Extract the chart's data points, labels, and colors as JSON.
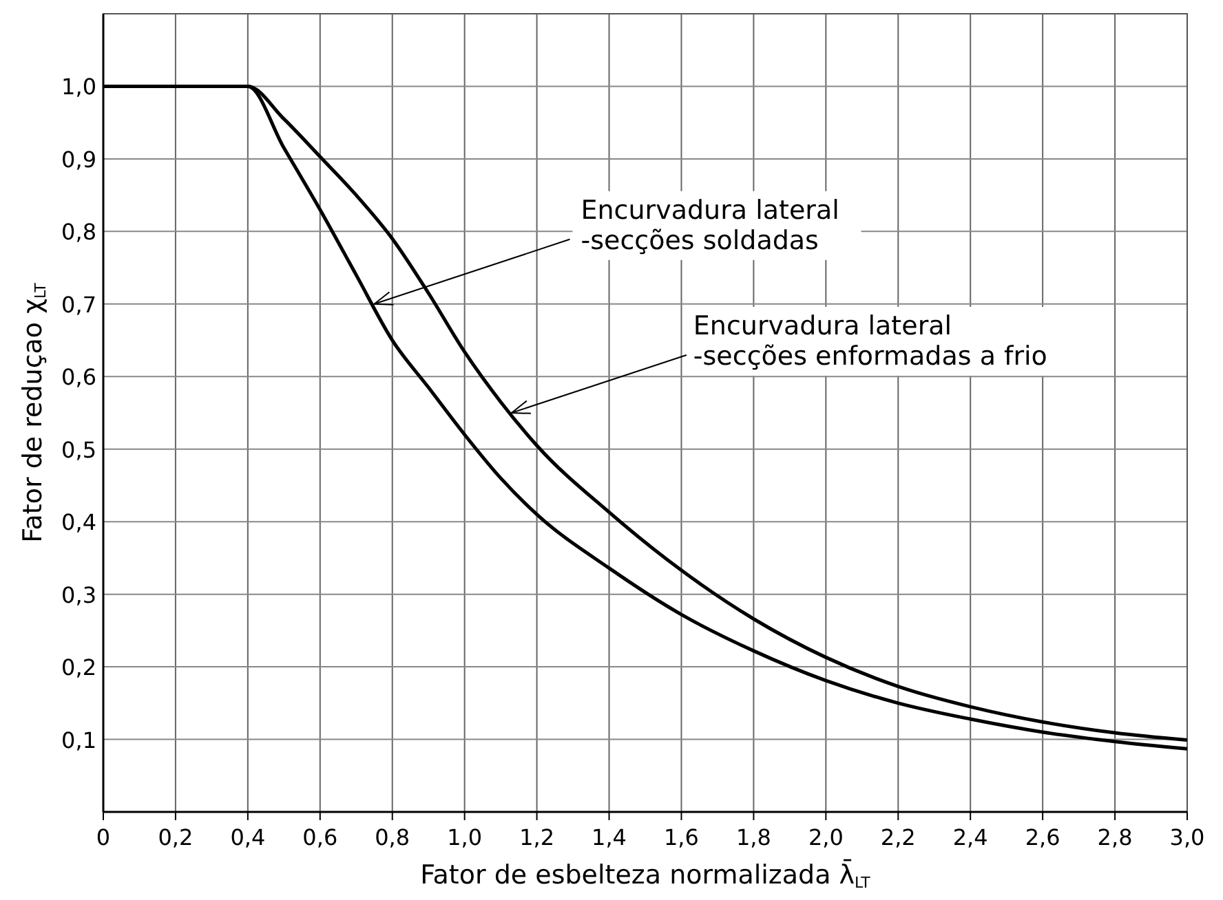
{
  "chart_data": {
    "type": "line",
    "xlabel": "Fator de esbelteza normalizada  λ̄$_{LT}$",
    "ylabel": "Fator de reduçao  χ$_{LT}$",
    "x": [
      0,
      0.2,
      0.4,
      0.5,
      0.6,
      0.7,
      0.8,
      0.9,
      1.0,
      1.1,
      1.2,
      1.4,
      1.6,
      1.8,
      2.0,
      2.2,
      2.4,
      2.6,
      2.8,
      3.0
    ],
    "series": [
      {
        "color": "#000000",
        "values": [
          1.0,
          1.0,
          1.0,
          0.915,
          0.83,
          0.74,
          0.65,
          0.585,
          0.52,
          0.46,
          0.41,
          0.336,
          0.272,
          0.222,
          0.181,
          0.15,
          0.128,
          0.11,
          0.097,
          0.087
        ]
      },
      {
        "color": "#000000",
        "values": [
          1.0,
          1.0,
          1.0,
          0.955,
          0.903,
          0.85,
          0.79,
          0.715,
          0.634,
          0.565,
          0.505,
          0.413,
          0.333,
          0.266,
          0.213,
          0.173,
          0.145,
          0.124,
          0.109,
          0.099
        ]
      }
    ],
    "xlim": [
      0,
      3.0
    ],
    "ylim": [
      0,
      1.1
    ],
    "xticks": [
      0,
      {
        "value": 0.2,
        "label": "0,2"
      },
      {
        "value": 0.4,
        "label": "0,4"
      },
      {
        "value": 0.6,
        "label": "0,6"
      },
      {
        "value": 0.8,
        "label": "0,8"
      },
      {
        "value": 1.0,
        "label": "1,0"
      },
      {
        "value": 1.2,
        "label": "1,2"
      },
      {
        "value": 1.4,
        "label": "1,4"
      },
      {
        "value": 1.6,
        "label": "1,6"
      },
      {
        "value": 1.8,
        "label": "1,8"
      },
      {
        "value": 2.0,
        "label": "2,0"
      },
      {
        "value": 2.2,
        "label": "2,2"
      },
      {
        "value": 2.4,
        "label": "2,4"
      },
      {
        "value": 2.6,
        "label": "2,6"
      },
      {
        "value": 2.8,
        "label": "2,8"
      },
      {
        "value": 3.0,
        "label": "3,0"
      }
    ],
    "yticks": [
      {
        "value": 0.1,
        "label": "0,1"
      },
      {
        "value": 0.2,
        "label": "0,2"
      },
      {
        "value": 0.3,
        "label": "0,3"
      },
      {
        "value": 0.4,
        "label": "0,4"
      },
      {
        "value": 0.5,
        "label": "0,5"
      },
      {
        "value": 0.6,
        "label": "0,6"
      },
      {
        "value": 0.7,
        "label": "0,7"
      },
      {
        "value": 0.8,
        "label": "0,8"
      },
      {
        "value": 0.9,
        "label": "0,9"
      },
      {
        "value": 1.0,
        "label": "1,0"
      },
      {
        "value": 1.1,
        "label": null
      }
    ],
    "grid": true,
    "annotations": [
      {
        "text": "Encurvadura lateral\n-secções soldadas",
        "x": 0.75,
        "y": 0.7
      },
      {
        "text": "Encurvadura lateral\n-secções enformadas a frio",
        "x": 1.13,
        "y": 0.55
      }
    ]
  }
}
